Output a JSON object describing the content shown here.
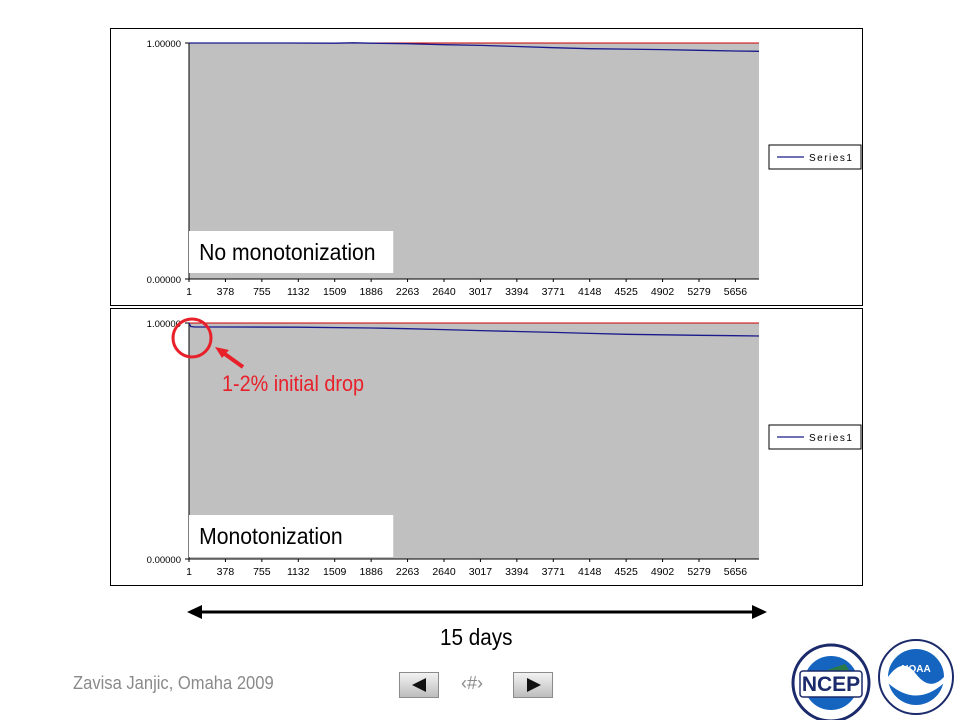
{
  "chart_data": [
    {
      "type": "line",
      "panel_label": "No monotonization",
      "y_tick_labels": [
        "1.00000",
        "0.00000"
      ],
      "ylim": [
        0,
        1
      ],
      "x_tick_labels": [
        "1",
        "378",
        "755",
        "1132",
        "1509",
        "1886",
        "2263",
        "2640",
        "3017",
        "3394",
        "3771",
        "4148",
        "4525",
        "4902",
        "5279",
        "5656"
      ],
      "xlim": [
        1,
        5900
      ],
      "legend": {
        "position": "right",
        "entries": [
          "Series1"
        ]
      },
      "plot_background": "#c0c0c0",
      "reference_line": {
        "y": 1.0,
        "color": "#cc0000"
      },
      "series": [
        {
          "name": "Series1",
          "color": "#1a1a8c",
          "points": [
            [
              1,
              1.0
            ],
            [
              1000,
              1.0
            ],
            [
              1509,
              0.999
            ],
            [
              1700,
              1.001
            ],
            [
              1886,
              0.999
            ],
            [
              2263,
              0.997
            ],
            [
              2500,
              0.994
            ],
            [
              2640,
              0.993
            ],
            [
              3017,
              0.99
            ],
            [
              3394,
              0.985
            ],
            [
              3771,
              0.98
            ],
            [
              4148,
              0.976
            ],
            [
              4525,
              0.974
            ],
            [
              4902,
              0.972
            ],
            [
              5279,
              0.969
            ],
            [
              5656,
              0.966
            ],
            [
              5900,
              0.965
            ]
          ]
        }
      ]
    },
    {
      "type": "line",
      "panel_label": "Monotonization",
      "y_tick_labels": [
        "1.00000",
        "0.00000"
      ],
      "ylim": [
        0,
        1
      ],
      "x_tick_labels": [
        "1",
        "378",
        "755",
        "1132",
        "1509",
        "1886",
        "2263",
        "2640",
        "3017",
        "3394",
        "3771",
        "4148",
        "4525",
        "4902",
        "5279",
        "5656"
      ],
      "xlim": [
        1,
        5900
      ],
      "legend": {
        "position": "right",
        "entries": [
          "Series1"
        ]
      },
      "plot_background": "#c0c0c0",
      "reference_line": {
        "y": 1.0,
        "color": "#cc0000"
      },
      "series": [
        {
          "name": "Series1",
          "color": "#1a1a8c",
          "points": [
            [
              1,
              1.0
            ],
            [
              20,
              0.985
            ],
            [
              60,
              0.983
            ],
            [
              378,
              0.983
            ],
            [
              1132,
              0.982
            ],
            [
              1886,
              0.979
            ],
            [
              2263,
              0.976
            ],
            [
              2640,
              0.972
            ],
            [
              3017,
              0.968
            ],
            [
              3394,
              0.964
            ],
            [
              3771,
              0.96
            ],
            [
              4148,
              0.956
            ],
            [
              4525,
              0.952
            ],
            [
              4902,
              0.95
            ],
            [
              5279,
              0.948
            ],
            [
              5656,
              0.946
            ],
            [
              5900,
              0.945
            ]
          ]
        }
      ]
    }
  ],
  "annotation": {
    "text": "1-2% initial drop",
    "color": "#e8202a"
  },
  "span": {
    "label": "15 days"
  },
  "footer": {
    "credit": "Zavisa Janjic, Omaha 2009",
    "slide_number": "‹#›",
    "logos": {
      "ncep": "NCEP",
      "noaa": "NOAA"
    }
  }
}
